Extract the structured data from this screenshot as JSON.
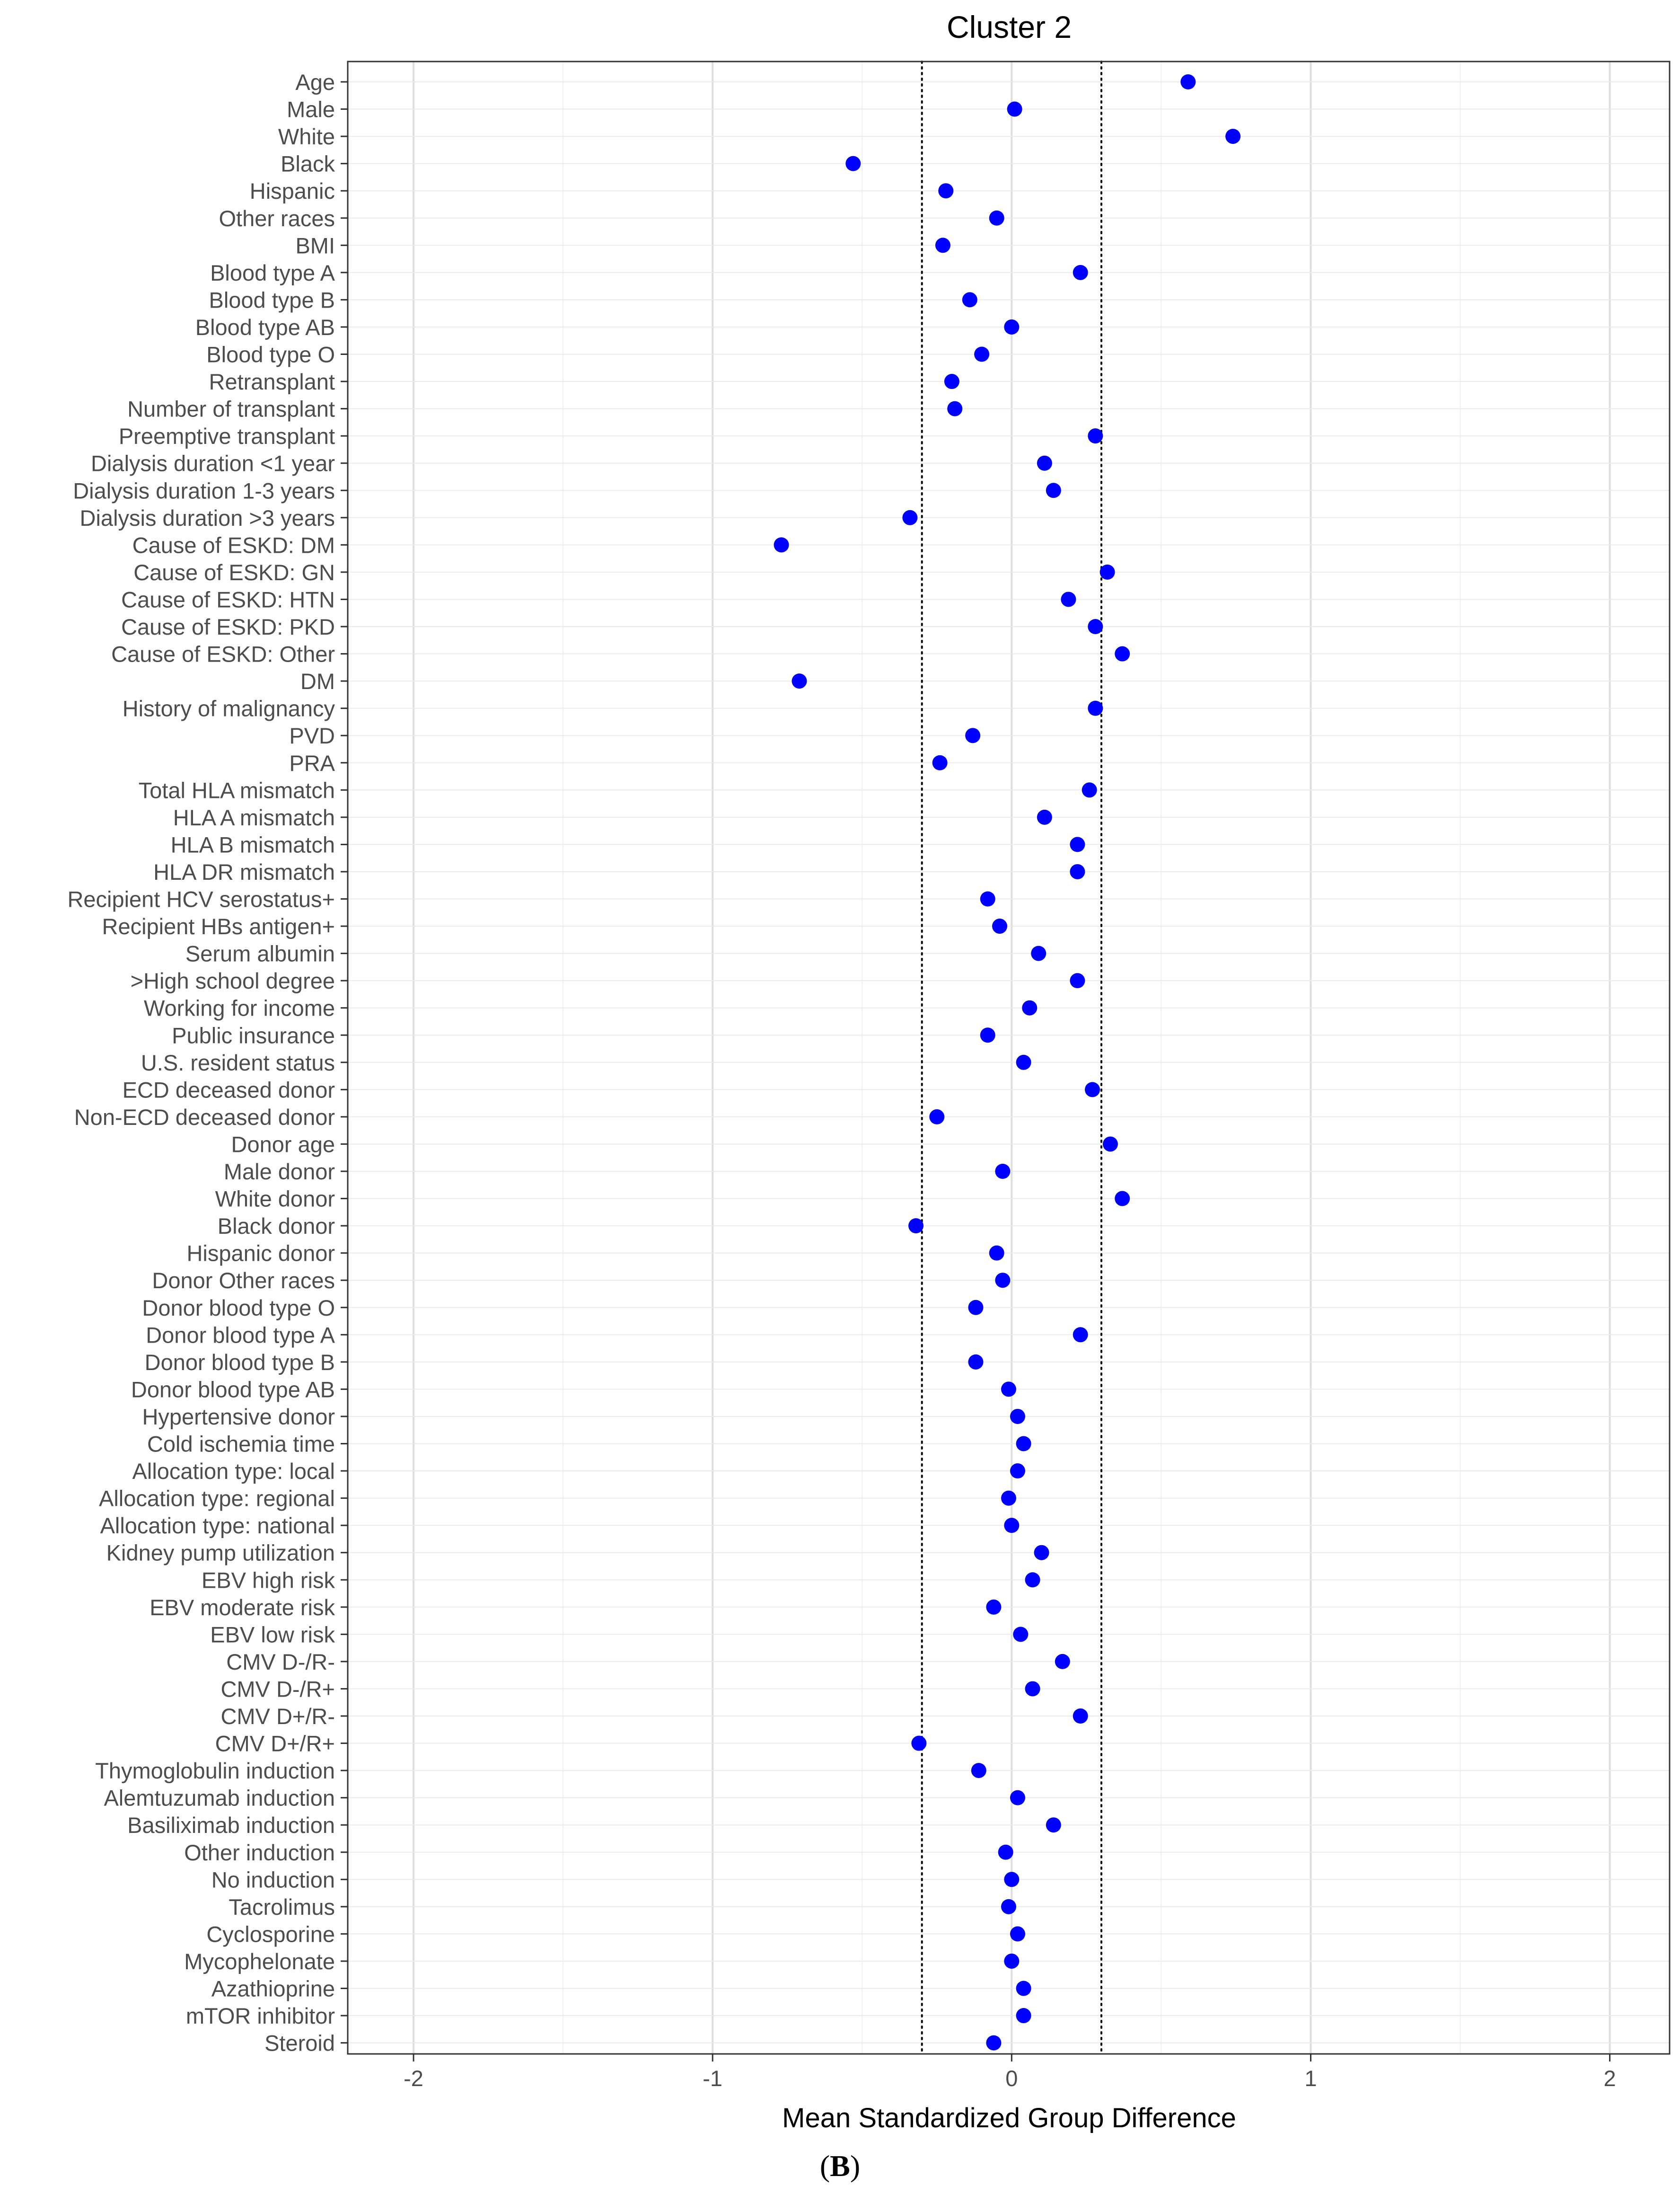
{
  "chart_data": {
    "type": "scatter",
    "title": "Cluster 2",
    "xlabel": "Mean Standardized Group Difference",
    "ylabel": "",
    "xlim": [
      -2.22,
      2.2
    ],
    "xticks": [
      -2,
      -1,
      0,
      1,
      2
    ],
    "xtick_labels": [
      "-2",
      "-1",
      "0",
      "1",
      "2"
    ],
    "reference_lines": [
      -0.3,
      0.3
    ],
    "grid": true,
    "legend": "none",
    "point_color": "#0000FF",
    "categories": [
      "Age",
      "Male",
      "White",
      "Black",
      "Hispanic",
      "Other races",
      "BMI",
      "Blood type A",
      "Blood type B",
      "Blood type AB",
      "Blood type O",
      "Retransplant",
      "Number of transplant",
      "Preemptive transplant",
      "Dialysis duration <1 year",
      "Dialysis duration 1-3 years",
      "Dialysis duration >3 years",
      "Cause of ESKD: DM",
      "Cause of ESKD: GN",
      "Cause of ESKD: HTN",
      "Cause of ESKD: PKD",
      "Cause of ESKD: Other",
      "DM",
      "History of malignancy",
      "PVD",
      "PRA",
      "Total HLA mismatch",
      "HLA A mismatch",
      "HLA B mismatch",
      "HLA DR mismatch",
      "Recipient HCV serostatus+",
      "Recipient HBs antigen+",
      "Serum albumin",
      ">High school degree",
      "Working for income",
      "Public insurance",
      "U.S. resident status",
      "ECD deceased donor",
      "Non-ECD deceased donor",
      "Donor age",
      "Male donor",
      "White donor",
      "Black donor",
      "Hispanic donor",
      "Donor Other races",
      "Donor blood type O",
      "Donor blood type A",
      "Donor blood type B",
      "Donor blood type AB",
      "Hypertensive donor",
      "Cold ischemia time",
      "Allocation type: local",
      "Allocation type: regional",
      "Allocation type: national",
      "Kidney pump utilization",
      "EBV high risk",
      "EBV moderate risk",
      "EBV low risk",
      "CMV D-/R-",
      "CMV D-/R+",
      "CMV D+/R-",
      "CMV D+/R+",
      "Thymoglobulin induction",
      "Alemtuzumab induction",
      "Basiliximab induction",
      "Other induction",
      "No induction",
      "Tacrolimus",
      "Cyclosporine",
      "Mycophelonate",
      "Azathioprine",
      "mTOR inhibitor",
      "Steroid"
    ],
    "values": [
      0.59,
      0.01,
      0.74,
      -0.53,
      -0.22,
      -0.05,
      -0.23,
      0.23,
      -0.14,
      0.0,
      -0.1,
      -0.2,
      -0.19,
      0.28,
      0.11,
      0.14,
      -0.34,
      -0.77,
      0.32,
      0.19,
      0.28,
      0.37,
      -0.71,
      0.28,
      -0.13,
      -0.24,
      0.26,
      0.11,
      0.22,
      0.22,
      -0.08,
      -0.04,
      0.09,
      0.22,
      0.06,
      -0.08,
      0.04,
      0.27,
      -0.25,
      0.33,
      -0.03,
      0.37,
      -0.32,
      -0.05,
      -0.03,
      -0.12,
      0.23,
      -0.12,
      -0.01,
      0.02,
      0.04,
      0.02,
      -0.01,
      0.0,
      0.1,
      0.07,
      -0.06,
      0.03,
      0.17,
      0.07,
      0.23,
      -0.31,
      -0.11,
      0.02,
      0.14,
      -0.02,
      0.0,
      -0.01,
      0.02,
      0.0,
      0.04,
      0.04,
      -0.06
    ]
  },
  "caption": {
    "open": "(",
    "letter": "B",
    "close": ")"
  }
}
